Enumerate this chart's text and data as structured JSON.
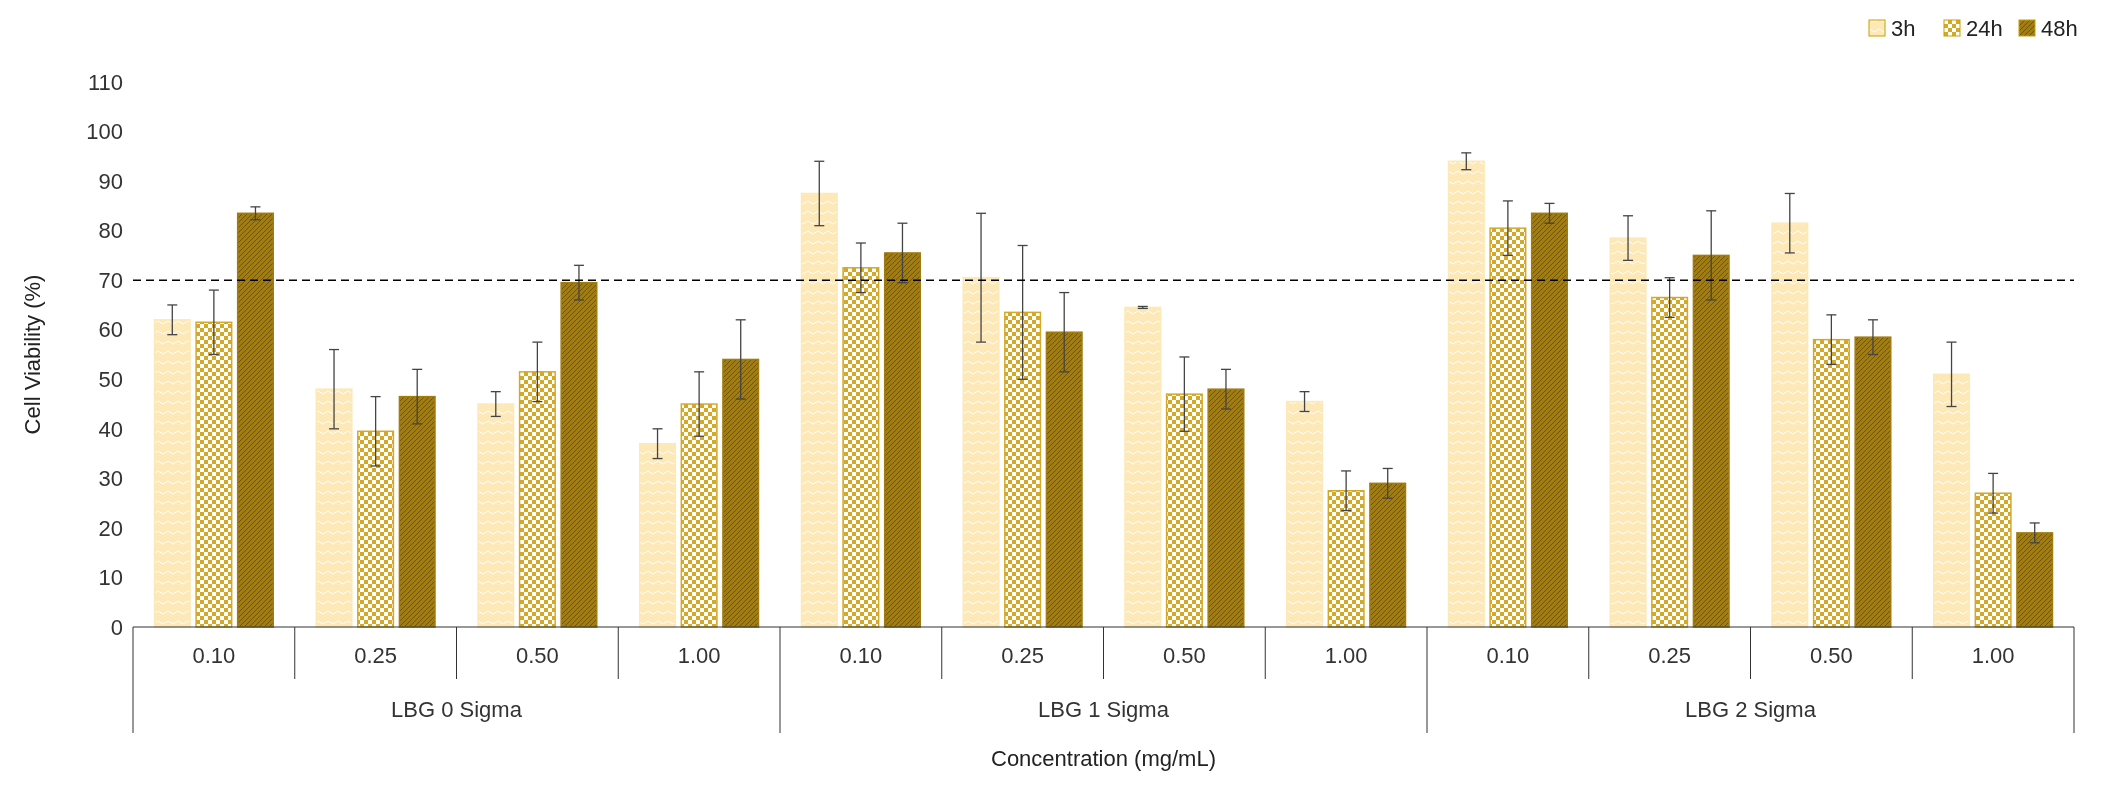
{
  "chart_data": {
    "type": "bar",
    "xlabel": "Concentration (mg/mL)",
    "ylabel": "Cell Viability (%)",
    "categories": [
      "0.10",
      "0.25",
      "0.50",
      "1.00",
      "0.10",
      "0.25",
      "0.50",
      "1.00",
      "0.10",
      "0.25",
      "0.50",
      "1.00"
    ],
    "annotations": [
      "LBG 0 Sigma",
      "LBG 1 Sigma",
      "LBG 2 Sigma"
    ],
    "series": [
      {
        "name": "3h",
        "color": "#fde9b8",
        "values": [
          62,
          48,
          45,
          37,
          87.5,
          70.5,
          64.5,
          45.5,
          94,
          78.5,
          81.5,
          51
        ],
        "errors": [
          3,
          8,
          2.5,
          3,
          6.5,
          13,
          0.2,
          2,
          1.7,
          4.5,
          6,
          6.5
        ]
      },
      {
        "name": "24h",
        "color": "#d4a92a",
        "values": [
          61.5,
          39.5,
          51.5,
          45,
          72.5,
          63.5,
          47,
          27.5,
          80.5,
          66.5,
          58,
          27
        ],
        "errors": [
          6.5,
          7,
          6,
          6.5,
          5,
          13.5,
          7.5,
          4,
          5.5,
          4,
          5,
          4
        ]
      },
      {
        "name": "48h",
        "color": "#a07c12",
        "values": [
          83.5,
          46.5,
          69.5,
          54,
          75.5,
          59.5,
          48,
          29,
          83.5,
          75,
          58.5,
          19
        ],
        "errors": [
          1.3,
          5.5,
          3.5,
          8,
          6,
          8,
          4,
          3,
          2,
          9,
          3.5,
          2
        ]
      }
    ],
    "ylim": [
      0,
      110
    ],
    "yticks": [
      0,
      10,
      20,
      30,
      40,
      50,
      60,
      70,
      80,
      90,
      100,
      110
    ],
    "ref_lines": [
      {
        "axis": "y",
        "value": 70,
        "color": "#000000",
        "line_style": "dashed"
      }
    ],
    "legend": "top right",
    "grid": false
  }
}
